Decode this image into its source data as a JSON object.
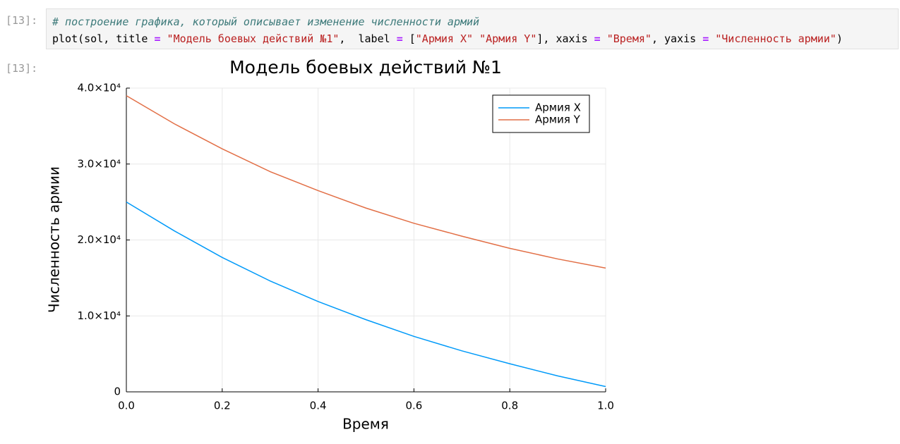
{
  "input_prompt": "[13]:",
  "output_prompt": "[13]:",
  "code": {
    "comment": "# построение графика, который описывает изменение численности армий",
    "tokens": [
      "plot(sol, title ",
      "=",
      " \"Модель боевых действий №1\"",
      ",  label ",
      "=",
      " [",
      "\"Армия X\" \"Армия Y\"",
      "], xaxis ",
      "=",
      " \"Время\"",
      ", yaxis ",
      "=",
      " \"Численность армии\"",
      ")"
    ]
  },
  "chart_data": {
    "type": "line",
    "title": "Модель боевых действий №1",
    "x_label": "Время",
    "y_label": "Численность армии",
    "x": [
      0,
      0.1,
      0.2,
      0.3,
      0.4,
      0.5,
      0.6,
      0.7,
      0.8,
      0.9,
      1.0
    ],
    "series": [
      {
        "name": "Армия X",
        "color": "#009af9",
        "values": [
          25000,
          21200,
          17700,
          14600,
          11900,
          9500,
          7300,
          5400,
          3700,
          2100,
          700
        ]
      },
      {
        "name": "Армия Y",
        "color": "#e26f46",
        "values": [
          39000,
          35300,
          32000,
          29000,
          26500,
          24200,
          22200,
          20500,
          18900,
          17500,
          16300
        ]
      }
    ],
    "xlim": [
      0,
      1
    ],
    "ylim": [
      0,
      40000
    ],
    "xticks": [
      {
        "value": 0,
        "label": "0.0"
      },
      {
        "value": 0.2,
        "label": "0.2"
      },
      {
        "value": 0.4,
        "label": "0.4"
      },
      {
        "value": 0.6,
        "label": "0.6"
      },
      {
        "value": 0.8,
        "label": "0.8"
      },
      {
        "value": 1,
        "label": "1.0"
      }
    ],
    "yticks": [
      0,
      {
        "value": 10000,
        "label": "1.0×10⁴"
      },
      {
        "value": 20000,
        "label": "2.0×10⁴"
      },
      {
        "value": 30000,
        "label": "3.0×10⁴"
      },
      {
        "value": 40000,
        "label": "4.0×10⁴"
      }
    ],
    "grid": true,
    "legend": "top-right"
  }
}
